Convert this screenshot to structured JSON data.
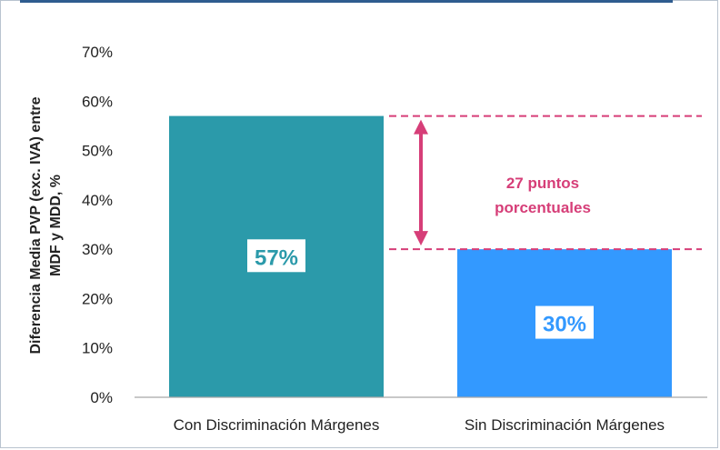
{
  "chart_data": {
    "type": "bar",
    "categories": [
      "Con Discriminación Márgenes",
      "Sin Discriminación Márgenes"
    ],
    "values": [
      57,
      30
    ],
    "data_labels": [
      "57%",
      "30%"
    ],
    "ylabel_lines": [
      "Diferencia Media PVP (exc. IVA) entre",
      "MDF y MDD, %"
    ],
    "yticks": [
      "0%",
      "10%",
      "20%",
      "30%",
      "40%",
      "50%",
      "60%",
      "70%"
    ],
    "ylim": [
      0,
      70
    ],
    "grid": false,
    "annotation_lines": [
      "27 puntos",
      "porcentuales"
    ],
    "colors": {
      "bar_1": "#2b9aaa",
      "bar_2": "#3399ff",
      "annotation": "#d63e78",
      "top_bar": "#2f5c8f"
    }
  }
}
